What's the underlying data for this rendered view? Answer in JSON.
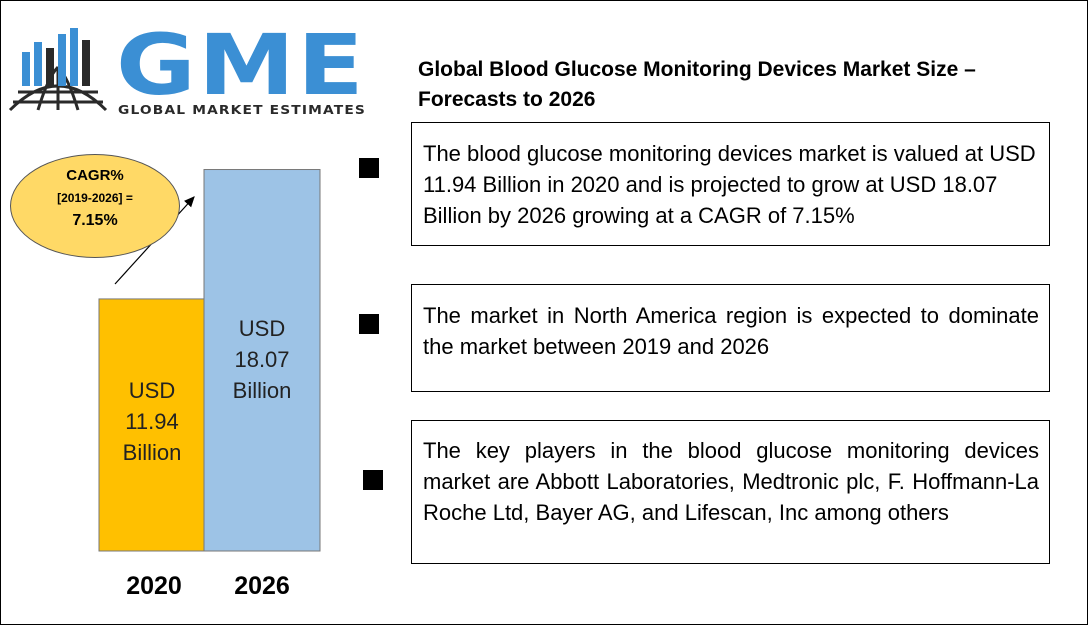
{
  "logo": {
    "name": "GME",
    "tagline": "GLOBAL MARKET ESTIMATES"
  },
  "title": "Global Blood Glucose Monitoring Devices  Market Size – Forecasts to 2026",
  "cagr": {
    "label": "CAGR%",
    "period": "[2019-2026] =",
    "value": "7.15%"
  },
  "chart_data": {
    "type": "bar",
    "categories": [
      "2020",
      "2026"
    ],
    "values": [
      11.94,
      18.07
    ],
    "unit": "USD Billion",
    "data_labels": [
      [
        "USD",
        "11.94",
        "Billion"
      ],
      [
        "USD",
        "18.07",
        "Billion"
      ]
    ],
    "ylim": [
      0,
      19.8
    ],
    "title": "",
    "xlabel": "",
    "ylabel": "",
    "grid": false,
    "colors": [
      "#ffc000",
      "#9dc3e6"
    ]
  },
  "facts": [
    "The blood glucose monitoring devices market is valued at USD 11.94 Billion in 2020 and is projected to grow at USD 18.07 Billion by 2026 growing at a CAGR of 7.15%",
    "The market in North America region is expected to dominate the market between 2019 and 2026",
    "The key players in the blood glucose monitoring devices market are      Abbott Laboratories, Medtronic plc, F. Hoffmann-La Roche Ltd, Bayer AG, and Lifescan, Inc among others"
  ],
  "colors": {
    "brand_blue": "#3b8fd4",
    "dark": "#2a2a2a",
    "cagr_fill": "#ffd966"
  }
}
